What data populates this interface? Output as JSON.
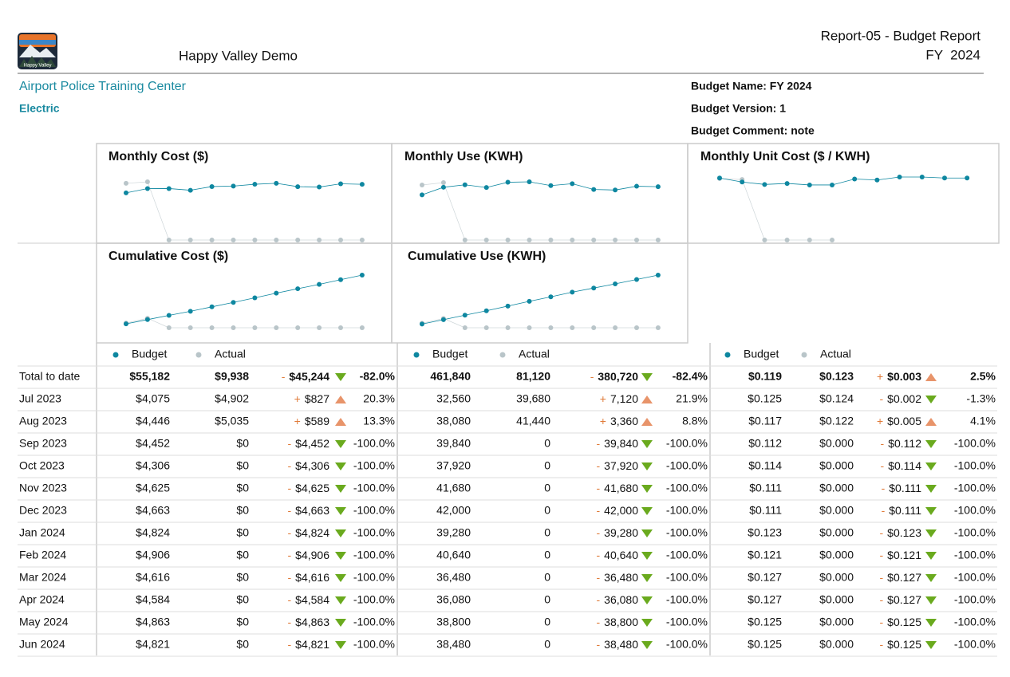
{
  "header": {
    "logo_text": "Happy Valley",
    "company": "Happy Valley Demo",
    "report": "Report-05 - Budget Report",
    "period": "FY  2024"
  },
  "facility": "Airport Police Training Center",
  "commodity": "Electric",
  "budget_info": [
    "Budget Name: FY 2024",
    "Budget Version: 1",
    "Budget Comment: note"
  ],
  "colors": {
    "budget": "#0e87a0",
    "actual": "#b9c5c9"
  },
  "charts": [
    {
      "type": "line",
      "title": "Monthly Cost ($)",
      "budget": [
        4075,
        4446,
        4452,
        4306,
        4625,
        4663,
        4824,
        4906,
        4616,
        4584,
        4863,
        4821
      ],
      "actual": [
        4902,
        5035,
        0,
        0,
        0,
        0,
        0,
        0,
        0,
        0,
        0,
        0
      ]
    },
    {
      "type": "line",
      "title": "Monthly Use (KWH)",
      "budget": [
        32560,
        38080,
        39840,
        37920,
        41680,
        42000,
        39280,
        40640,
        36480,
        36080,
        38800,
        38480
      ],
      "actual": [
        39680,
        41440,
        0,
        0,
        0,
        0,
        0,
        0,
        0,
        0,
        0,
        0
      ]
    },
    {
      "type": "line",
      "title": "Monthly Unit Cost ($ / KWH)",
      "budget": [
        0.125,
        0.117,
        0.112,
        0.114,
        0.111,
        0.111,
        0.123,
        0.121,
        0.127,
        0.127,
        0.125,
        0.125
      ],
      "actual": [
        0.124,
        0.122,
        0,
        0,
        0,
        0,
        null,
        null,
        null,
        null,
        null,
        null
      ]
    },
    {
      "type": "line",
      "title": "Cumulative Cost ($)",
      "budget": [
        4075,
        8521,
        12973,
        17279,
        21904,
        26567,
        31391,
        36297,
        40913,
        45497,
        50360,
        55181
      ],
      "actual": [
        4902,
        9937,
        0,
        0,
        0,
        0,
        0,
        0,
        0,
        0,
        0,
        0
      ]
    },
    {
      "type": "line",
      "title": "Cumulative Use (KWH)",
      "budget": [
        32560,
        70640,
        110480,
        148400,
        190080,
        232080,
        271360,
        312000,
        348480,
        384560,
        423360,
        461840
      ],
      "actual": [
        39680,
        81120,
        0,
        0,
        0,
        0,
        0,
        0,
        0,
        0,
        0,
        0
      ]
    }
  ],
  "table": {
    "legend": [
      "Budget",
      "Actual"
    ],
    "rows": [
      {
        "label": "Total to date",
        "groups": [
          [
            "$55,182",
            "$9,938",
            "-",
            "$45,244",
            "-82.0%"
          ],
          [
            "461,840",
            "81,120",
            "-",
            "380,720",
            "-82.4%"
          ],
          [
            "$0.119",
            "$0.123",
            "+",
            "$0.003",
            "2.5%"
          ]
        ]
      },
      {
        "label": "Jul 2023",
        "groups": [
          [
            "$4,075",
            "$4,902",
            "+",
            "$827",
            "20.3%"
          ],
          [
            "32,560",
            "39,680",
            "+",
            "7,120",
            "21.9%"
          ],
          [
            "$0.125",
            "$0.124",
            "-",
            "$0.002",
            "-1.3%"
          ]
        ]
      },
      {
        "label": "Aug 2023",
        "groups": [
          [
            "$4,446",
            "$5,035",
            "+",
            "$589",
            "13.3%"
          ],
          [
            "38,080",
            "41,440",
            "+",
            "3,360",
            "8.8%"
          ],
          [
            "$0.117",
            "$0.122",
            "+",
            "$0.005",
            "4.1%"
          ]
        ]
      },
      {
        "label": "Sep 2023",
        "groups": [
          [
            "$4,452",
            "$0",
            "-",
            "$4,452",
            "-100.0%"
          ],
          [
            "39,840",
            "0",
            "-",
            "39,840",
            "-100.0%"
          ],
          [
            "$0.112",
            "$0.000",
            "-",
            "$0.112",
            "-100.0%"
          ]
        ]
      },
      {
        "label": "Oct 2023",
        "groups": [
          [
            "$4,306",
            "$0",
            "-",
            "$4,306",
            "-100.0%"
          ],
          [
            "37,920",
            "0",
            "-",
            "37,920",
            "-100.0%"
          ],
          [
            "$0.114",
            "$0.000",
            "-",
            "$0.114",
            "-100.0%"
          ]
        ]
      },
      {
        "label": "Nov 2023",
        "groups": [
          [
            "$4,625",
            "$0",
            "-",
            "$4,625",
            "-100.0%"
          ],
          [
            "41,680",
            "0",
            "-",
            "41,680",
            "-100.0%"
          ],
          [
            "$0.111",
            "$0.000",
            "-",
            "$0.111",
            "-100.0%"
          ]
        ]
      },
      {
        "label": "Dec 2023",
        "groups": [
          [
            "$4,663",
            "$0",
            "-",
            "$4,663",
            "-100.0%"
          ],
          [
            "42,000",
            "0",
            "-",
            "42,000",
            "-100.0%"
          ],
          [
            "$0.111",
            "$0.000",
            "-",
            "$0.111",
            "-100.0%"
          ]
        ]
      },
      {
        "label": "Jan 2024",
        "groups": [
          [
            "$4,824",
            "$0",
            "-",
            "$4,824",
            "-100.0%"
          ],
          [
            "39,280",
            "0",
            "-",
            "39,280",
            "-100.0%"
          ],
          [
            "$0.123",
            "$0.000",
            "-",
            "$0.123",
            "-100.0%"
          ]
        ]
      },
      {
        "label": "Feb 2024",
        "groups": [
          [
            "$4,906",
            "$0",
            "-",
            "$4,906",
            "-100.0%"
          ],
          [
            "40,640",
            "0",
            "-",
            "40,640",
            "-100.0%"
          ],
          [
            "$0.121",
            "$0.000",
            "-",
            "$0.121",
            "-100.0%"
          ]
        ]
      },
      {
        "label": "Mar 2024",
        "groups": [
          [
            "$4,616",
            "$0",
            "-",
            "$4,616",
            "-100.0%"
          ],
          [
            "36,480",
            "0",
            "-",
            "36,480",
            "-100.0%"
          ],
          [
            "$0.127",
            "$0.000",
            "-",
            "$0.127",
            "-100.0%"
          ]
        ]
      },
      {
        "label": "Apr 2024",
        "groups": [
          [
            "$4,584",
            "$0",
            "-",
            "$4,584",
            "-100.0%"
          ],
          [
            "36,080",
            "0",
            "-",
            "36,080",
            "-100.0%"
          ],
          [
            "$0.127",
            "$0.000",
            "-",
            "$0.127",
            "-100.0%"
          ]
        ]
      },
      {
        "label": "May 2024",
        "groups": [
          [
            "$4,863",
            "$0",
            "-",
            "$4,863",
            "-100.0%"
          ],
          [
            "38,800",
            "0",
            "-",
            "38,800",
            "-100.0%"
          ],
          [
            "$0.125",
            "$0.000",
            "-",
            "$0.125",
            "-100.0%"
          ]
        ]
      },
      {
        "label": "Jun 2024",
        "groups": [
          [
            "$4,821",
            "$0",
            "-",
            "$4,821",
            "-100.0%"
          ],
          [
            "38,480",
            "0",
            "-",
            "38,480",
            "-100.0%"
          ],
          [
            "$0.125",
            "$0.000",
            "-",
            "$0.125",
            "-100.0%"
          ]
        ]
      }
    ]
  }
}
